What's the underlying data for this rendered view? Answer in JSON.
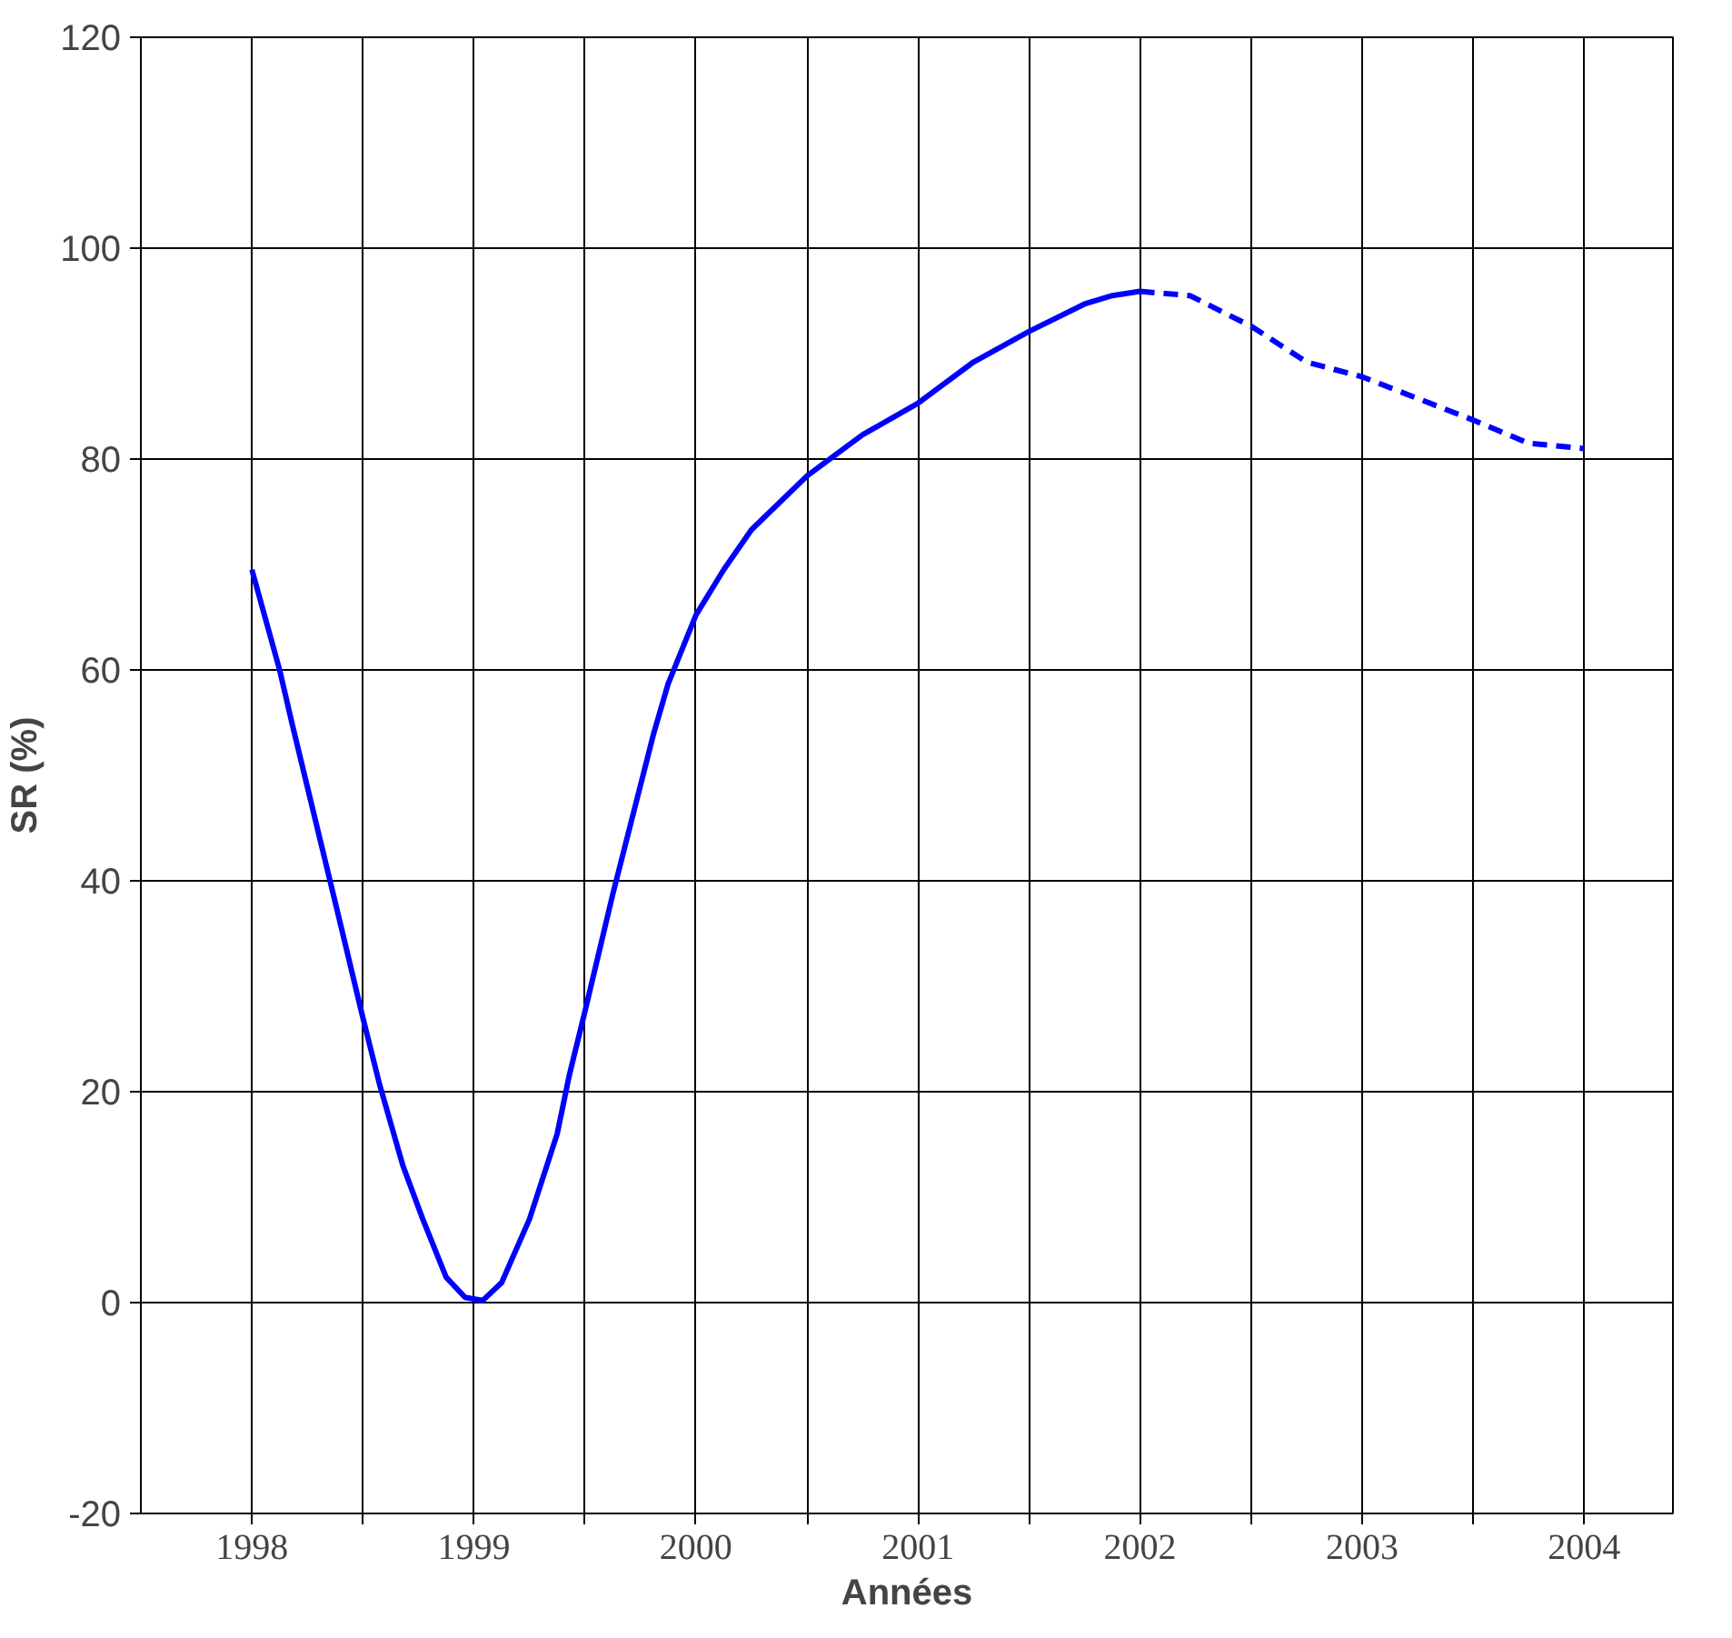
{
  "chart_data": {
    "type": "line",
    "xlabel": "Années",
    "ylabel": "SR (%)",
    "xlim": [
      1997.5,
      2004.4
    ],
    "ylim": [
      -20,
      120
    ],
    "xticks": [
      {
        "value": 1998,
        "label": "1998"
      },
      {
        "value": 1998.5,
        "label": null
      },
      {
        "value": 1999,
        "label": "1999"
      },
      {
        "value": 1999.5,
        "label": null
      },
      {
        "value": 2000,
        "label": "2000"
      },
      {
        "value": 2000.5,
        "label": null
      },
      {
        "value": 2001,
        "label": "2001"
      },
      {
        "value": 2001.5,
        "label": null
      },
      {
        "value": 2002,
        "label": "2002"
      },
      {
        "value": 2002.5,
        "label": null
      },
      {
        "value": 2003,
        "label": "2003"
      },
      {
        "value": 2003.5,
        "label": null
      },
      {
        "value": 2004,
        "label": "2004"
      }
    ],
    "yticks": [
      -20,
      0,
      20,
      40,
      60,
      80,
      100,
      120
    ],
    "grid": true,
    "series": [
      {
        "color": "#0000ff",
        "line_style": "solid",
        "x": [
          1998.0,
          1998.125,
          1998.18,
          1998.375,
          1998.5,
          1998.575,
          1998.68,
          1998.77,
          1998.875,
          1998.96,
          1999.04,
          1999.125,
          1999.25,
          1999.375,
          1999.43,
          1999.5,
          1999.625,
          1999.81,
          1999.875,
          2000.0,
          2000.125,
          2000.25,
          2000.5,
          2000.75,
          2001.0,
          2001.25,
          2001.5,
          2001.75,
          2001.875,
          2002.0
        ],
        "values": [
          69.5,
          60,
          55,
          38,
          27,
          20.7,
          13,
          7.9,
          2.4,
          0.5,
          0.2,
          1.9,
          7.9,
          16,
          21.6,
          27.6,
          38.7,
          54,
          58.7,
          65.2,
          69.5,
          73.3,
          78.4,
          82.3,
          85.3,
          89.2,
          92.1,
          94.7,
          95.5,
          95.9
        ]
      },
      {
        "color": "#0000ff",
        "line_style": "dashed",
        "x": [
          2002.0,
          2002.225,
          2002.5,
          2002.75,
          2003.0,
          2003.5,
          2003.75,
          2004.0
        ],
        "values": [
          95.9,
          95.5,
          92.6,
          89.2,
          87.8,
          83.7,
          81.5,
          81.0
        ]
      }
    ]
  }
}
